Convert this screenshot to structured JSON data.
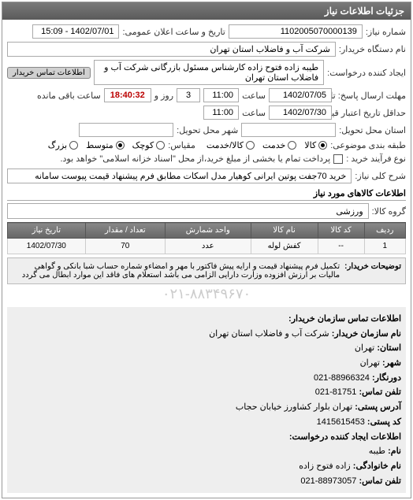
{
  "panel_title": "جزئیات اطلاعات نیاز",
  "fields": {
    "req_no_label": "شماره نیاز:",
    "req_no": "1102005070000139",
    "pub_date_label": "تاریخ و ساعت اعلان عمومی:",
    "pub_date": "1402/07/01 - 15:09",
    "buyer_org_label": "نام دستگاه خریدار:",
    "buyer_org": "شرکت آب و فاضلاب استان تهران",
    "creator_label": "ایجاد کننده درخواست:",
    "creator": "طیبه زاده فتوح زاده کارشناس مسئول بازرگانی شرکت آب و فاضلاب استان تهران",
    "buyer_contact_badge": "اطلاعات تماس خریدار",
    "resp_deadline_label": "مهلت ارسال پاسخ: تا تاریخ:",
    "resp_date": "1402/07/05",
    "time_label": "ساعت",
    "resp_time": "11:00",
    "days_and": "و",
    "days_val": "3",
    "days_unit": "روز و",
    "remaining_time": "18:40:32",
    "remaining_suffix": "ساعت باقی مانده",
    "validity_label": "حداقل تاریخ اعتبار قیمت: تا تاریخ:",
    "validity_date": "1402/07/30",
    "validity_time": "11:00",
    "delivery_state_label": "استان محل تحویل:",
    "delivery_city_label": "شهر محل تحویل:",
    "budget_label": "طبقه بندی موضوعی:",
    "radio_goods": "کالا",
    "radio_service": "خدمت",
    "radio_both": "کالا/خدمت",
    "scale_label": "مقیاس:",
    "scale_small": "کوچک",
    "scale_medium": "متوسط",
    "scale_large": "بزرگ",
    "buy_type_label": "نوع فرآیند خرید :",
    "buy_type_note": "پرداخت تمام یا بخشی از مبلغ خرید،از محل \"اسناد خزانه اسلامی\" خواهد بود.",
    "desc_label": "شرح کلی نیاز:",
    "desc": "خرید 70جفت پوتین ایرانی کوهیار مدل اسکات مطابق فرم پیشنهاد قیمت پیوست سامانه",
    "goods_info_title": "اطلاعات کالاهای مورد نیاز",
    "group_label": "گروه کالا:",
    "group_val": "ورزشی"
  },
  "table": {
    "headers": [
      "ردیف",
      "کد کالا",
      "نام کالا",
      "واحد شمارش",
      "تعداد / مقدار",
      "تاریخ نیاز"
    ],
    "rows": [
      [
        "1",
        "--",
        "کفش لوله",
        "عدد",
        "70",
        "1402/07/30"
      ]
    ]
  },
  "note": {
    "label": "توضیحات خریدار:",
    "text": "تکمیل فرم پیشنهاد قیمت و ارایه پیش فاکتور با مهر و امضاءو شماره حساب شبا بانکی و گواهی مالیات بر ارزش افزوده وزارت دارایی الزامی می باشد استعلام های فاقد این موارد ابطال می گردد"
  },
  "faded": "۰۲۱-۸۸۳۴۹۶۷۰",
  "contact": {
    "title": "اطلاعات تماس سازمان خریدار:",
    "org_label": "نام سازمان خریدار:",
    "org": "شرکت آب و فاضلاب استان تهران",
    "province_label": "استان:",
    "province": "تهران",
    "city_label": "شهر:",
    "city": "تهران",
    "fax_label": "دورنگار:",
    "fax": "88966324-021",
    "phone_label": "تلفن تماس:",
    "phone": "81751-021",
    "addr_label": "آدرس پستی:",
    "addr": "تهران بلوار کشاورز خیابان حجاب",
    "post_label": "کد پستی:",
    "post": "1415615453",
    "creator2_label": "اطلاعات ایجاد کننده درخواست:",
    "name_label": "نام:",
    "name": "طیبه",
    "lname_label": "نام خانوادگی:",
    "lname": "زاده فتوح زاده",
    "cphone_label": "تلفن تماس:",
    "cphone": "88973057-021"
  }
}
